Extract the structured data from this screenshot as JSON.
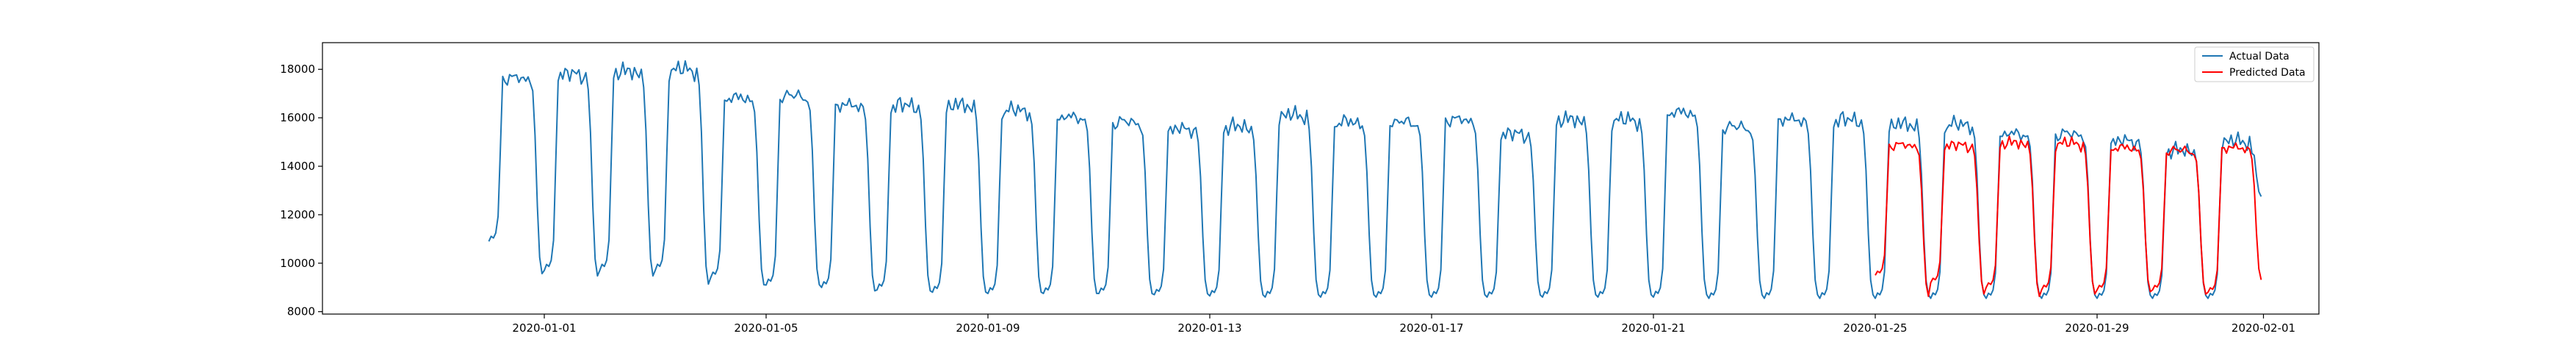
{
  "chart_data": {
    "type": "line",
    "title": "",
    "xlabel": "",
    "ylabel": "",
    "x_range": [
      "2019-12-28",
      "2020-02-02"
    ],
    "ylim": [
      7900,
      19100
    ],
    "grid": false,
    "legend_placement": "top-right",
    "x_ticks": [
      "2020-01-01",
      "2020-01-05",
      "2020-01-09",
      "2020-01-13",
      "2020-01-17",
      "2020-01-21",
      "2020-01-25",
      "2020-01-29",
      "2020-02-01"
    ],
    "y_ticks": [
      8000,
      10000,
      12000,
      14000,
      16000,
      18000
    ],
    "colors": {
      "actual": "#1f77b4",
      "predicted": "#ff0000"
    },
    "series": [
      {
        "name": "Actual Data",
        "pattern": "daily_cycle",
        "start_datetime": "2019-12-31T00:00",
        "end_datetime": "2020-01-31T23:00",
        "step_hours": 1,
        "day_start_values": [
          10900,
          9700,
          9700,
          9700,
          9400,
          9100,
          9000,
          8900,
          8800,
          8750,
          8750,
          8750,
          8700,
          8650,
          8600,
          8600,
          8600,
          8600,
          8600,
          8600,
          8600,
          8600,
          8550,
          8550,
          8550,
          8550,
          8550,
          8550,
          8550,
          8550,
          8550,
          8550
        ],
        "day_high_values": [
          17800,
          18000,
          18100,
          18200,
          17000,
          17100,
          16700,
          16700,
          16700,
          16500,
          16200,
          16000,
          15700,
          15800,
          16300,
          16000,
          16000,
          16100,
          15500,
          16100,
          16100,
          16400,
          15800,
          16100,
          16100,
          15900,
          15900,
          15500,
          15500,
          15200,
          14800,
          15200
        ],
        "day_end_values": [
          9400,
          9300,
          9300,
          8950,
          8950,
          8950,
          8700,
          8700,
          8650,
          8650,
          8600,
          8600,
          8600,
          8550,
          8550,
          8550,
          8550,
          8550,
          8550,
          8550,
          8550,
          8550,
          8550,
          8550,
          8550,
          8550,
          8550,
          8550,
          8550,
          8550,
          8550,
          12700
        ]
      },
      {
        "name": "Predicted Data",
        "pattern": "daily_cycle",
        "start_datetime": "2020-01-25T00:00",
        "end_datetime": "2020-01-31T23:00",
        "step_hours": 1,
        "day_start_values": [
          9500,
          9200,
          9000,
          8900,
          8900,
          8900,
          8800
        ],
        "day_high_values": [
          15000,
          15000,
          15100,
          15100,
          14900,
          14800,
          14900
        ],
        "day_end_values": [
          8500,
          8600,
          8500,
          8600,
          8700,
          8600,
          9200
        ]
      }
    ]
  }
}
